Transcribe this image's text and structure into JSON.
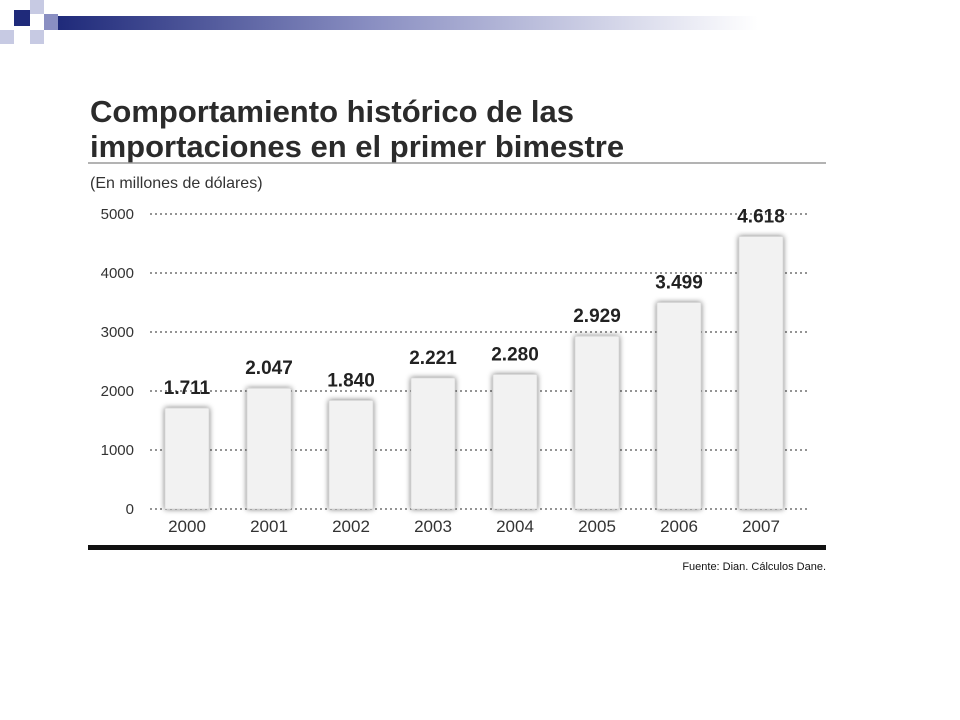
{
  "slide": {
    "header_colors": [
      "#1f2a7a",
      "#8a8fc2",
      "#c7cae3"
    ]
  },
  "chart_data": {
    "type": "bar",
    "title_lines": [
      "Comportamiento histórico de las",
      "importaciones en el primer bimestre"
    ],
    "subtitle": "(En millones de dólares)",
    "categories": [
      "2000",
      "2001",
      "2002",
      "2003",
      "2004",
      "2005",
      "2006",
      "2007"
    ],
    "values": [
      1711,
      2047,
      1840,
      2221,
      2280,
      2929,
      3499,
      4618
    ],
    "value_labels": [
      "1.711",
      "2.047",
      "1.840",
      "2.221",
      "2.280",
      "2.929",
      "3.499",
      "4.618"
    ],
    "yticks": [
      "0",
      "1000",
      "2000",
      "3000",
      "4000",
      "5000"
    ],
    "ylim": [
      0,
      5000
    ],
    "grid": true,
    "grid_style": "dotted",
    "bar_color": "#f2f2f2",
    "source": "Fuente: Dian. Cálculos Dane."
  }
}
